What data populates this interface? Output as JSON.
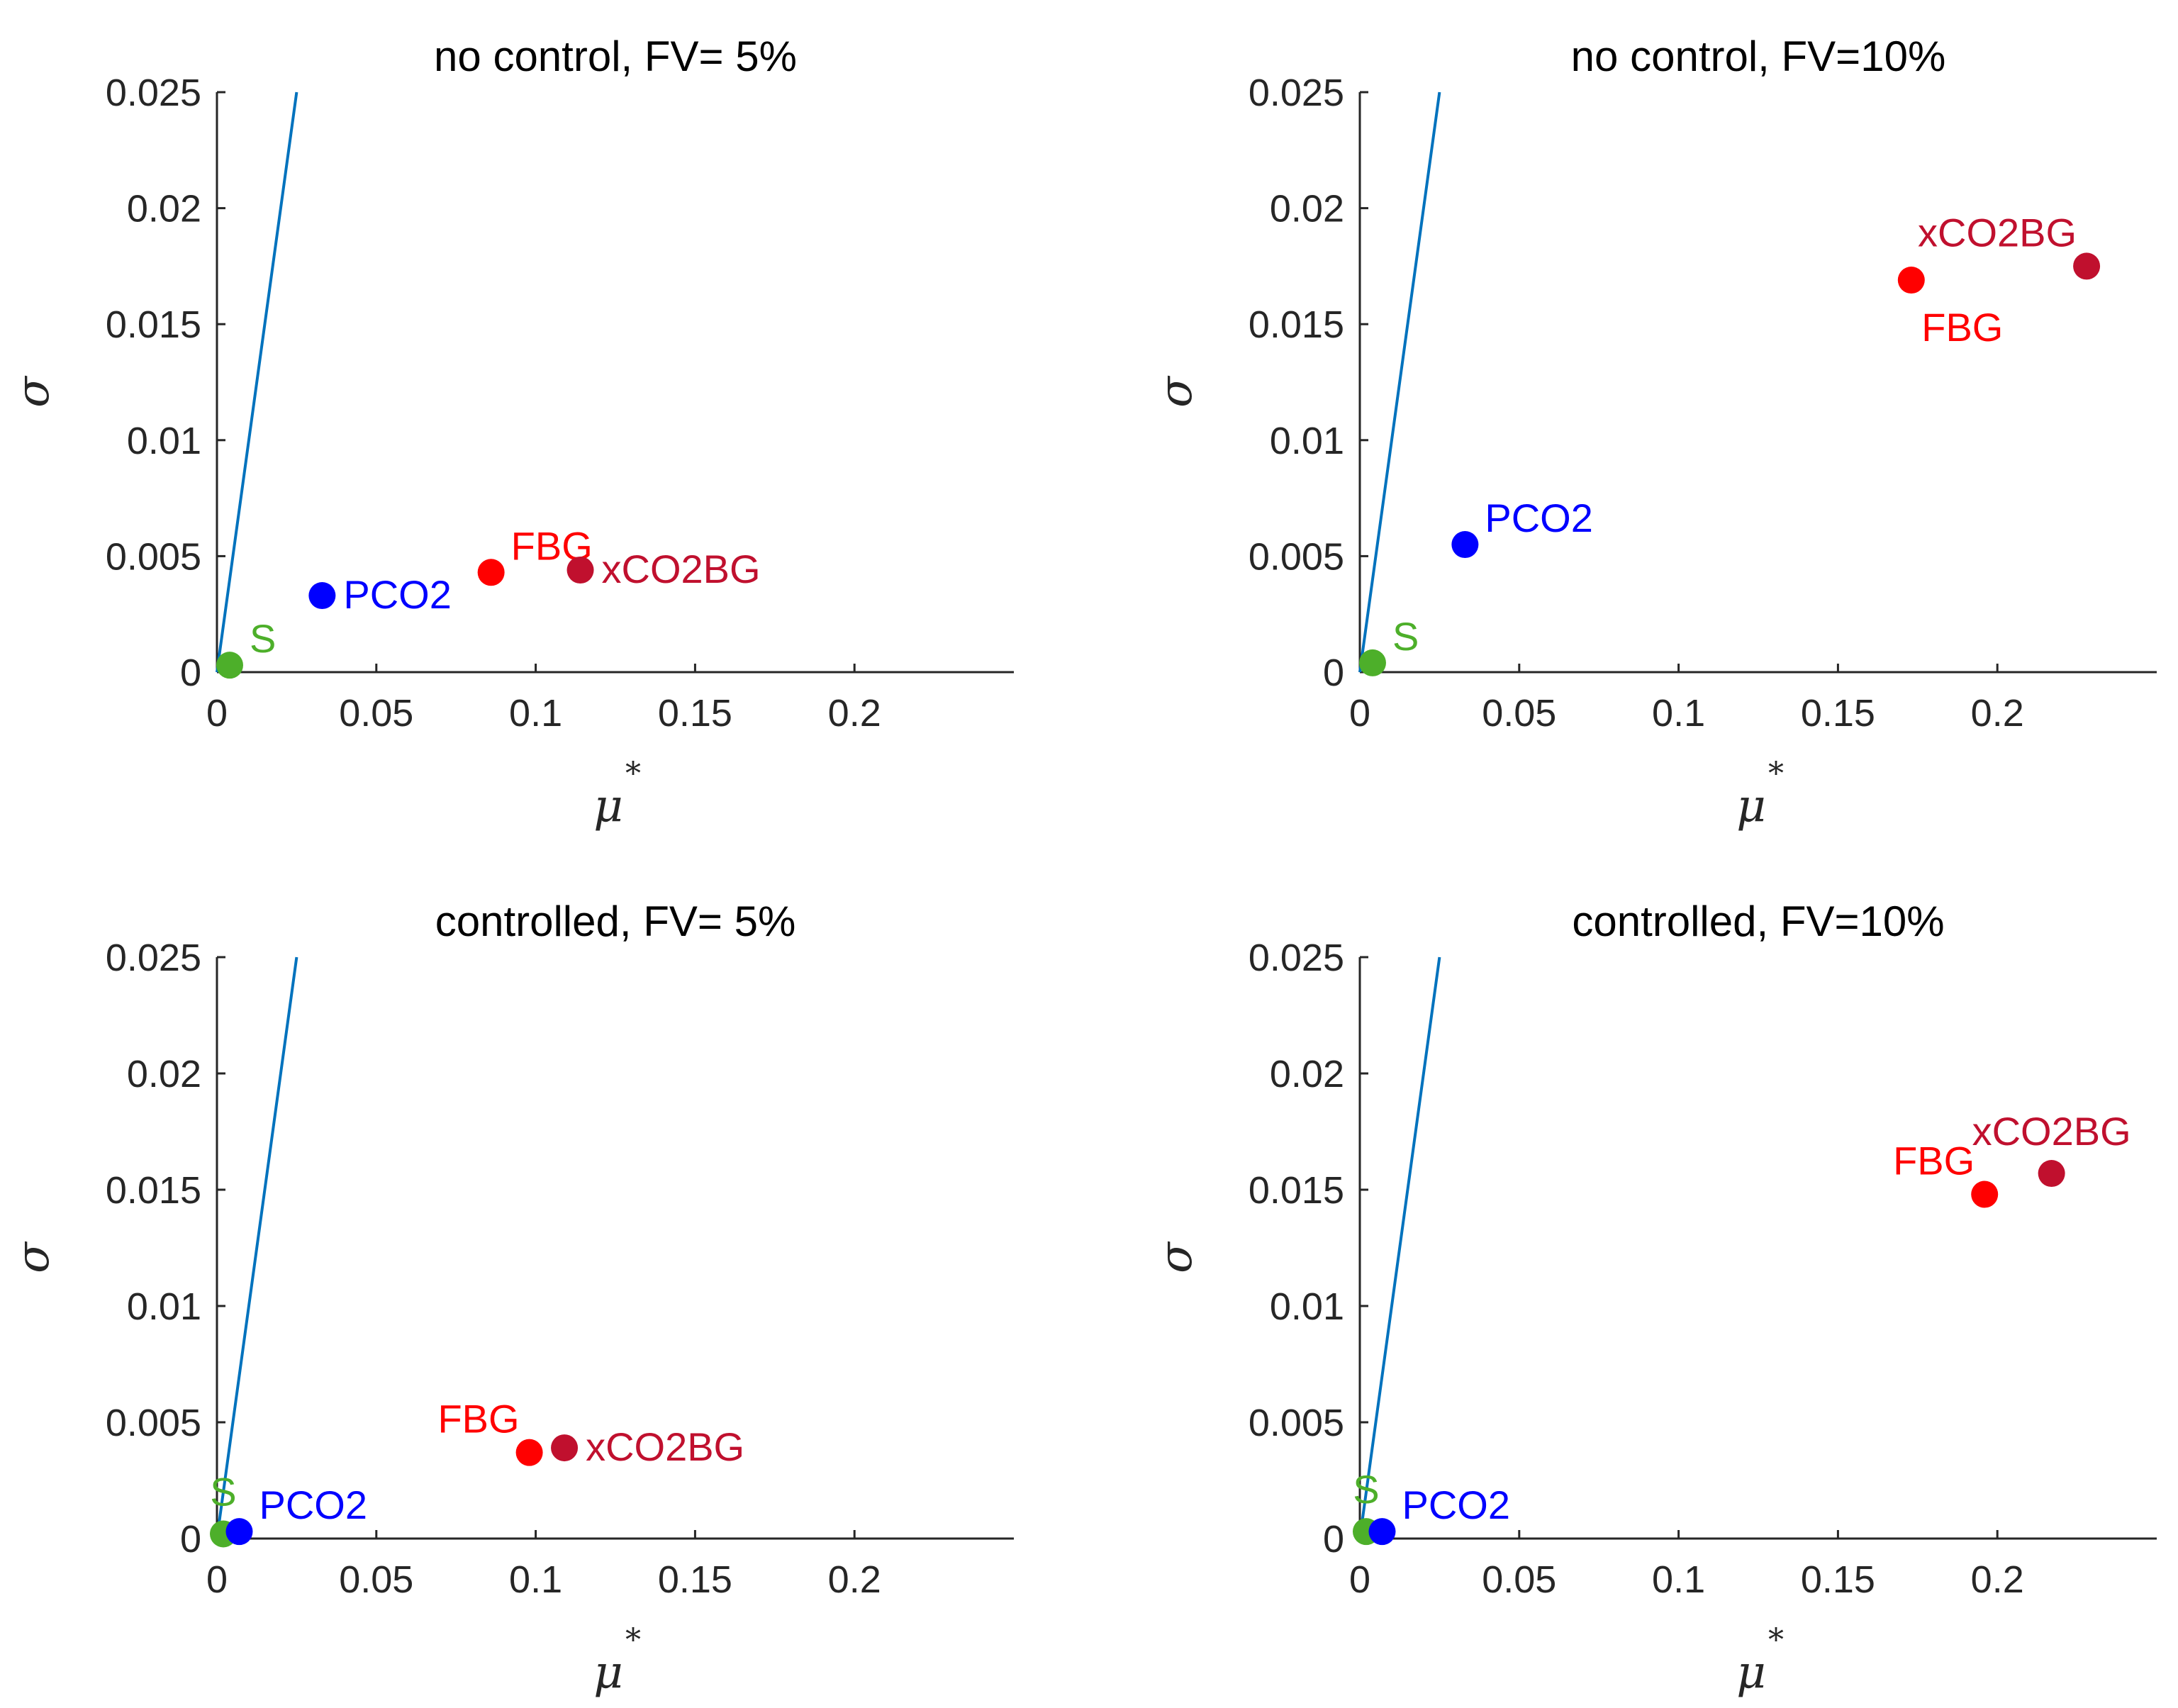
{
  "figure": {
    "colors": {
      "axis": "#262626",
      "reference_line": "#0072BD",
      "S": "#4DAF2A",
      "PCO2": "#0000FF",
      "FBG": "#FF0000",
      "xCO2BG": "#C0102E"
    }
  },
  "chart_data": [
    {
      "type": "scatter",
      "title": "no control, FV= 5%",
      "xlabel": "μ",
      "xlabel_sup": "*",
      "ylabel": "σ",
      "xlim": [
        0,
        0.25
      ],
      "ylim": [
        0,
        0.025
      ],
      "xticks": [
        "0",
        "0.05",
        "0.1",
        "0.15",
        "0.2"
      ],
      "yticks": [
        "0",
        "0.005",
        "0.01",
        "0.015",
        "0.02",
        "0.025"
      ],
      "reference_line": {
        "x": [
          0,
          0.025
        ],
        "y": [
          0,
          0.025
        ]
      },
      "points": [
        {
          "label": "S",
          "x": 0.004,
          "y": 0.0003,
          "label_pos": "above-right"
        },
        {
          "label": "PCO2",
          "x": 0.033,
          "y": 0.0033,
          "label_pos": "right"
        },
        {
          "label": "FBG",
          "x": 0.086,
          "y": 0.0043,
          "label_pos": "above-right"
        },
        {
          "label": "xCO2BG",
          "x": 0.114,
          "y": 0.0044,
          "label_pos": "right"
        }
      ]
    },
    {
      "type": "scatter",
      "title": "no control, FV=10%",
      "xlabel": "μ",
      "xlabel_sup": "*",
      "ylabel": "σ",
      "xlim": [
        0,
        0.25
      ],
      "ylim": [
        0,
        0.025
      ],
      "xticks": [
        "0",
        "0.05",
        "0.1",
        "0.15",
        "0.2"
      ],
      "yticks": [
        "0",
        "0.005",
        "0.01",
        "0.015",
        "0.02",
        "0.025"
      ],
      "reference_line": {
        "x": [
          0,
          0.025
        ],
        "y": [
          0,
          0.025
        ]
      },
      "points": [
        {
          "label": "S",
          "x": 0.004,
          "y": 0.0004,
          "label_pos": "above-right"
        },
        {
          "label": "PCO2",
          "x": 0.033,
          "y": 0.0055,
          "label_pos": "above-right"
        },
        {
          "label": "FBG",
          "x": 0.173,
          "y": 0.0169,
          "label_pos": "below"
        },
        {
          "label": "xCO2BG",
          "x": 0.228,
          "y": 0.0175,
          "label_pos": "above-left"
        }
      ]
    },
    {
      "type": "scatter",
      "title": "controlled, FV= 5%",
      "xlabel": "μ",
      "xlabel_sup": "*",
      "ylabel": "σ",
      "xlim": [
        0,
        0.25
      ],
      "ylim": [
        0,
        0.025
      ],
      "xticks": [
        "0",
        "0.05",
        "0.1",
        "0.15",
        "0.2"
      ],
      "yticks": [
        "0",
        "0.005",
        "0.01",
        "0.015",
        "0.02",
        "0.025"
      ],
      "reference_line": {
        "x": [
          0,
          0.025
        ],
        "y": [
          0,
          0.025
        ]
      },
      "points": [
        {
          "label": "S",
          "x": 0.002,
          "y": 0.0002,
          "label_pos": "above"
        },
        {
          "label": "PCO2",
          "x": 0.007,
          "y": 0.0003,
          "label_pos": "above-right"
        },
        {
          "label": "FBG",
          "x": 0.098,
          "y": 0.0037,
          "label_pos": "above-left"
        },
        {
          "label": "xCO2BG",
          "x": 0.109,
          "y": 0.0039,
          "label_pos": "right"
        }
      ]
    },
    {
      "type": "scatter",
      "title": "controlled, FV=10%",
      "xlabel": "μ",
      "xlabel_sup": "*",
      "ylabel": "σ",
      "xlim": [
        0,
        0.25
      ],
      "ylim": [
        0,
        0.025
      ],
      "xticks": [
        "0",
        "0.05",
        "0.1",
        "0.15",
        "0.2"
      ],
      "yticks": [
        "0",
        "0.005",
        "0.01",
        "0.015",
        "0.02",
        "0.025"
      ],
      "reference_line": {
        "x": [
          0,
          0.025
        ],
        "y": [
          0,
          0.025
        ]
      },
      "points": [
        {
          "label": "S",
          "x": 0.002,
          "y": 0.0003,
          "label_pos": "above"
        },
        {
          "label": "PCO2",
          "x": 0.007,
          "y": 0.0003,
          "label_pos": "above-right"
        },
        {
          "label": "FBG",
          "x": 0.196,
          "y": 0.0148,
          "label_pos": "above-left"
        },
        {
          "label": "xCO2BG",
          "x": 0.217,
          "y": 0.0157,
          "label_pos": "above"
        }
      ]
    }
  ]
}
